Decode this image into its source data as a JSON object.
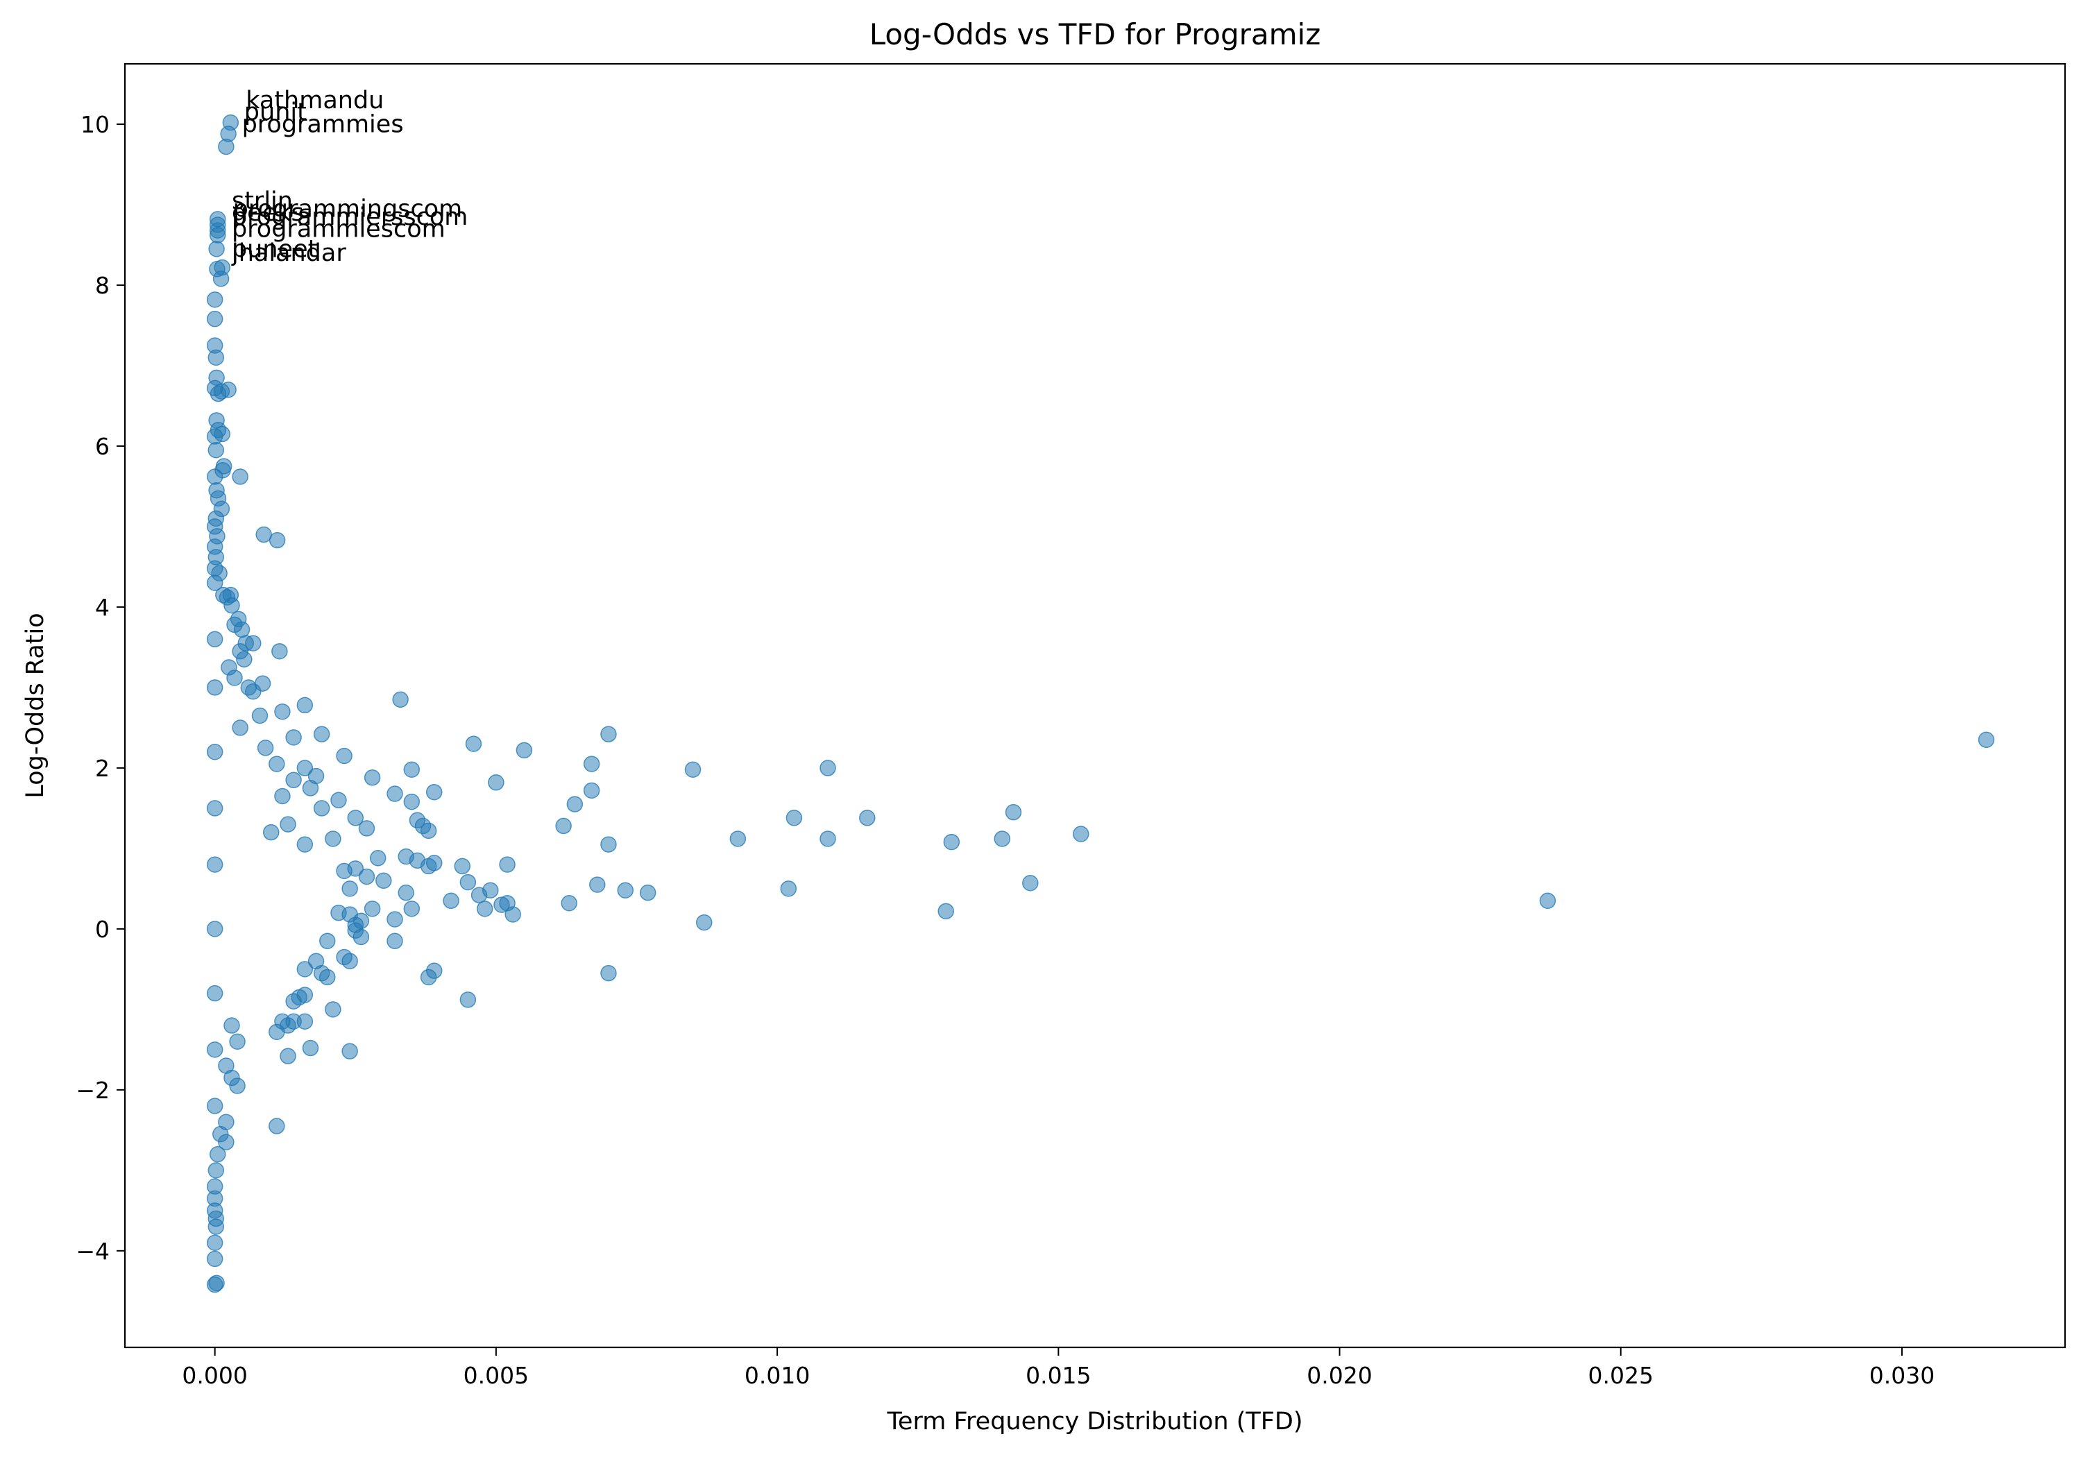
{
  "chart_data": {
    "type": "scatter",
    "title": "Log-Odds vs TFD for Programiz",
    "xlabel": "Term Frequency Distribution (TFD)",
    "ylabel": "Log-Odds Ratio",
    "xlim": [
      -0.0016,
      0.0329
    ],
    "ylim": [
      -5.2,
      10.75
    ],
    "x_ticks": [
      0.0,
      0.005,
      0.01,
      0.015,
      0.02,
      0.025,
      0.03
    ],
    "x_tick_labels": [
      "0.000",
      "0.005",
      "0.010",
      "0.015",
      "0.020",
      "0.025",
      "0.030"
    ],
    "y_ticks": [
      -4,
      -2,
      0,
      2,
      4,
      6,
      8,
      10
    ],
    "y_tick_labels": [
      "−4",
      "−2",
      "0",
      "2",
      "4",
      "6",
      "8",
      "10"
    ],
    "grid": false,
    "legend": "none",
    "marker_color": "#1f77b4",
    "marker_alpha": 0.5,
    "annotations": [
      {
        "text": "kathmandu",
        "x": 0.00055,
        "y": 10.2
      },
      {
        "text": "punit",
        "x": 0.00052,
        "y": 10.05
      },
      {
        "text": "programmies",
        "x": 0.00048,
        "y": 9.9
      },
      {
        "text": "strlin",
        "x": 0.0003,
        "y": 8.95
      },
      {
        "text": "programmingscom",
        "x": 0.00032,
        "y": 8.85
      },
      {
        "text": "geeks",
        "x": 0.0003,
        "y": 8.8
      },
      {
        "text": "programmiersscom",
        "x": 0.0003,
        "y": 8.75
      },
      {
        "text": "programmiescom",
        "x": 0.0003,
        "y": 8.6
      },
      {
        "text": "puneet",
        "x": 0.0003,
        "y": 8.35
      },
      {
        "text": "jhalandar",
        "x": 0.0003,
        "y": 8.3
      }
    ],
    "points": [
      [
        0.00028,
        10.02
      ],
      [
        0.00024,
        9.88
      ],
      [
        0.0002,
        9.72
      ],
      [
        5e-05,
        8.82
      ],
      [
        5e-05,
        8.75
      ],
      [
        5e-05,
        8.68
      ],
      [
        5e-05,
        8.62
      ],
      [
        3e-05,
        8.45
      ],
      [
        4e-05,
        8.2
      ],
      [
        0.00013,
        8.22
      ],
      [
        0.00011,
        8.08
      ],
      [
        0.0,
        7.82
      ],
      [
        0.0,
        7.58
      ],
      [
        0.0,
        7.25
      ],
      [
        2e-05,
        7.1
      ],
      [
        3e-05,
        6.85
      ],
      [
        0.0,
        6.72
      ],
      [
        6e-05,
        6.65
      ],
      [
        0.00012,
        6.68
      ],
      [
        0.00024,
        6.7
      ],
      [
        3e-05,
        6.32
      ],
      [
        6e-05,
        6.2
      ],
      [
        0.00013,
        6.15
      ],
      [
        0.0,
        6.12
      ],
      [
        2e-05,
        5.95
      ],
      [
        0.0,
        5.62
      ],
      [
        0.00016,
        5.75
      ],
      [
        0.00014,
        5.7
      ],
      [
        0.00045,
        5.62
      ],
      [
        3e-05,
        5.45
      ],
      [
        6e-05,
        5.35
      ],
      [
        0.00012,
        5.22
      ],
      [
        2e-05,
        5.1
      ],
      [
        0.0,
        5.0
      ],
      [
        4e-05,
        4.88
      ],
      [
        0.0,
        4.75
      ],
      [
        0.00087,
        4.9
      ],
      [
        0.00111,
        4.83
      ],
      [
        2e-05,
        4.62
      ],
      [
        0.0,
        4.48
      ],
      [
        8e-05,
        4.42
      ],
      [
        0.0,
        4.3
      ],
      [
        0.00015,
        4.15
      ],
      [
        0.00022,
        4.12
      ],
      [
        0.00028,
        4.15
      ],
      [
        0.0003,
        4.02
      ],
      [
        0.00042,
        3.85
      ],
      [
        0.00035,
        3.78
      ],
      [
        0.00048,
        3.72
      ],
      [
        0.00055,
        3.55
      ],
      [
        0.00068,
        3.55
      ],
      [
        0.00045,
        3.45
      ],
      [
        0.00052,
        3.35
      ],
      [
        0.00115,
        3.45
      ],
      [
        0.00025,
        3.25
      ],
      [
        0.00035,
        3.12
      ],
      [
        0.0006,
        3.0
      ],
      [
        0.00068,
        2.95
      ],
      [
        0.00085,
        3.05
      ],
      [
        0.0016,
        2.78
      ],
      [
        0.0012,
        2.7
      ],
      [
        0.0008,
        2.65
      ],
      [
        0.00045,
        2.5
      ],
      [
        0.0014,
        2.38
      ],
      [
        0.0019,
        2.42
      ],
      [
        0.0023,
        2.15
      ],
      [
        0.0009,
        2.25
      ],
      [
        0.0011,
        2.05
      ],
      [
        0.0016,
        2.0
      ],
      [
        0.0018,
        1.9
      ],
      [
        0.0017,
        1.75
      ],
      [
        0.0014,
        1.85
      ],
      [
        0.0012,
        1.65
      ],
      [
        0.0019,
        1.5
      ],
      [
        0.0022,
        1.6
      ],
      [
        0.0025,
        1.38
      ],
      [
        0.0027,
        1.25
      ],
      [
        0.0021,
        1.12
      ],
      [
        0.0016,
        1.05
      ],
      [
        0.0013,
        1.3
      ],
      [
        0.001,
        1.2
      ],
      [
        0.0028,
        1.88
      ],
      [
        0.0033,
        2.85
      ],
      [
        0.0035,
        1.98
      ],
      [
        0.0032,
        1.68
      ],
      [
        0.0035,
        1.58
      ],
      [
        0.0039,
        1.7
      ],
      [
        0.0036,
        1.35
      ],
      [
        0.0037,
        1.28
      ],
      [
        0.0038,
        1.22
      ],
      [
        0.0034,
        0.9
      ],
      [
        0.0036,
        0.85
      ],
      [
        0.0038,
        0.78
      ],
      [
        0.0039,
        0.82
      ],
      [
        0.0029,
        0.88
      ],
      [
        0.003,
        0.6
      ],
      [
        0.0027,
        0.65
      ],
      [
        0.0025,
        0.75
      ],
      [
        0.0023,
        0.72
      ],
      [
        0.0024,
        0.5
      ],
      [
        0.0022,
        0.2
      ],
      [
        0.0025,
        0.05
      ],
      [
        0.0024,
        0.18
      ],
      [
        0.0026,
        0.1
      ],
      [
        0.0028,
        0.25
      ],
      [
        0.0032,
        0.12
      ],
      [
        0.0034,
        0.45
      ],
      [
        0.0035,
        0.25
      ],
      [
        0.0042,
        0.35
      ],
      [
        0.0044,
        0.78
      ],
      [
        0.0045,
        0.58
      ],
      [
        0.0047,
        0.42
      ],
      [
        0.0048,
        0.25
      ],
      [
        0.0049,
        0.48
      ],
      [
        0.0051,
        0.3
      ],
      [
        0.0052,
        0.32
      ],
      [
        0.0052,
        0.8
      ],
      [
        0.0053,
        0.18
      ],
      [
        0.0032,
        -0.15
      ],
      [
        0.0038,
        -0.6
      ],
      [
        0.0039,
        -0.52
      ],
      [
        0.0045,
        -0.88
      ],
      [
        0.0025,
        -0.02
      ],
      [
        0.0026,
        -0.1
      ],
      [
        0.0023,
        -0.35
      ],
      [
        0.0024,
        -0.4
      ],
      [
        0.002,
        -0.15
      ],
      [
        0.0018,
        -0.4
      ],
      [
        0.0019,
        -0.55
      ],
      [
        0.002,
        -0.6
      ],
      [
        0.0016,
        -0.5
      ],
      [
        0.0015,
        -0.85
      ],
      [
        0.0014,
        -0.9
      ],
      [
        0.0016,
        -0.82
      ],
      [
        0.0013,
        -1.2
      ],
      [
        0.0012,
        -1.15
      ],
      [
        0.0014,
        -1.15
      ],
      [
        0.0016,
        -1.15
      ],
      [
        0.0011,
        -1.28
      ],
      [
        0.0021,
        -1.0
      ],
      [
        0.0017,
        -1.48
      ],
      [
        0.0013,
        -1.58
      ],
      [
        0.0024,
        -1.52
      ],
      [
        0.0011,
        -2.45
      ],
      [
        0.0004,
        -1.95
      ],
      [
        0.0003,
        -1.85
      ],
      [
        0.0002,
        -1.7
      ],
      [
        0.0004,
        -1.4
      ],
      [
        0.0003,
        -1.2
      ],
      [
        0.0002,
        -2.4
      ],
      [
        0.0002,
        -2.65
      ],
      [
        0.0001,
        -2.55
      ],
      [
        5e-05,
        -2.8
      ],
      [
        2e-05,
        -3.0
      ],
      [
        0.0,
        -3.2
      ],
      [
        0.0,
        -3.35
      ],
      [
        0.0,
        -3.5
      ],
      [
        2e-05,
        -3.7
      ],
      [
        0.0,
        -3.9
      ],
      [
        0.0,
        -4.1
      ],
      [
        0.0,
        -4.42
      ],
      [
        3e-05,
        -4.4
      ],
      [
        2e-05,
        -3.6
      ],
      [
        0.0,
        -2.2
      ],
      [
        0.0,
        -1.5
      ],
      [
        0.0,
        -0.8
      ],
      [
        0.0,
        0.0
      ],
      [
        0.0,
        0.8
      ],
      [
        0.0,
        1.5
      ],
      [
        0.0,
        2.2
      ],
      [
        0.0,
        3.0
      ],
      [
        0.0,
        3.6
      ],
      [
        0.0046,
        2.3
      ],
      [
        0.0055,
        2.22
      ],
      [
        0.005,
        1.82
      ],
      [
        0.0062,
        1.28
      ],
      [
        0.0064,
        1.55
      ],
      [
        0.0067,
        2.05
      ],
      [
        0.0067,
        1.72
      ],
      [
        0.007,
        2.42
      ],
      [
        0.007,
        1.05
      ],
      [
        0.0068,
        0.55
      ],
      [
        0.0063,
        0.32
      ],
      [
        0.0073,
        0.48
      ],
      [
        0.0077,
        0.45
      ],
      [
        0.007,
        -0.55
      ],
      [
        0.0085,
        1.98
      ],
      [
        0.0087,
        0.08
      ],
      [
        0.0093,
        1.12
      ],
      [
        0.0103,
        1.38
      ],
      [
        0.0102,
        0.5
      ],
      [
        0.0109,
        2.0
      ],
      [
        0.0109,
        1.12
      ],
      [
        0.0116,
        1.38
      ],
      [
        0.0131,
        1.08
      ],
      [
        0.013,
        0.22
      ],
      [
        0.014,
        1.12
      ],
      [
        0.0142,
        1.45
      ],
      [
        0.0145,
        0.57
      ],
      [
        0.0154,
        1.18
      ],
      [
        0.0237,
        0.35
      ],
      [
        0.0315,
        2.35
      ]
    ]
  }
}
